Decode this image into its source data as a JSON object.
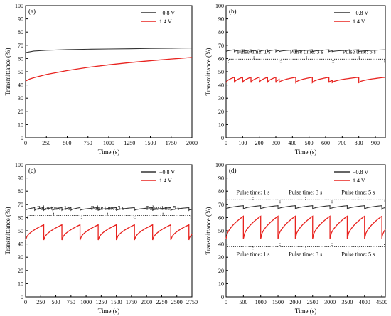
{
  "chart_data": [
    {
      "panel_label": "(a)",
      "type": "line",
      "xlabel": "Time (s)",
      "ylabel": "Transmittance (%)",
      "xlim": [
        0,
        2000
      ],
      "ylim": [
        0,
        100
      ],
      "xticks": [
        0,
        250,
        500,
        750,
        1000,
        1250,
        1500,
        1750,
        2000
      ],
      "yticks": [
        0,
        10,
        20,
        30,
        40,
        50,
        60,
        70,
        80,
        90,
        100
      ],
      "legend_position": "top-right",
      "series": [
        {
          "name": "−0.8 V",
          "color": "#333333",
          "x": [
            0,
            100,
            250,
            500,
            750,
            1000,
            1250,
            1500,
            1750,
            2000
          ],
          "y": [
            64.5,
            65.6,
            66.2,
            66.7,
            67.0,
            67.2,
            67.4,
            67.6,
            67.8,
            68.0
          ]
        },
        {
          "name": "1.4 V",
          "color": "#e8231f",
          "x": [
            0,
            50,
            100,
            250,
            500,
            750,
            1000,
            1250,
            1500,
            1750,
            2000
          ],
          "y": [
            43.0,
            44.5,
            45.5,
            47.9,
            50.9,
            53.3,
            55.2,
            56.9,
            58.3,
            59.6,
            60.8
          ]
        }
      ],
      "annotations": []
    },
    {
      "panel_label": "(b)",
      "type": "line",
      "xlabel": "Time (s)",
      "ylabel": "Transmittance (%)",
      "xlim": [
        0,
        960
      ],
      "ylim": [
        0,
        100
      ],
      "xticks": [
        0,
        100,
        200,
        300,
        400,
        500,
        600,
        700,
        800,
        900
      ],
      "yticks": [
        0,
        10,
        20,
        30,
        40,
        50,
        60,
        70,
        80,
        90,
        100
      ],
      "legend_position": "top-right",
      "series": [
        {
          "name": "−0.8 V",
          "color": "#333333",
          "kind": "sawtooth",
          "period_segments": [
            [
              0,
              320,
              50
            ],
            [
              320,
              640,
              100
            ],
            [
              640,
              960,
              160
            ]
          ],
          "low": 65.2,
          "high": 66.6
        },
        {
          "name": "1.4 V",
          "color": "#e8231f",
          "kind": "sawtooth",
          "period_segments": [
            [
              0,
              320,
              50
            ],
            [
              320,
              640,
              100
            ],
            [
              640,
              960,
              160
            ]
          ],
          "low": 41.8,
          "high": 45.8
        }
      ],
      "annotations": [
        {
          "text": "Pulse time: 1 s",
          "x1": 15,
          "x2": 320,
          "y": 59.5
        },
        {
          "text": "Pulse time: 3 s",
          "x1": 330,
          "x2": 640,
          "y": 59.5
        },
        {
          "text": "Pulse time: 5 s",
          "x1": 650,
          "x2": 955,
          "y": 59.5
        }
      ]
    },
    {
      "panel_label": "(c)",
      "type": "line",
      "xlabel": "Time (s)",
      "ylabel": "Transmittance (%)",
      "xlim": [
        0,
        2750
      ],
      "ylim": [
        0,
        100
      ],
      "xticks": [
        0,
        250,
        500,
        750,
        1000,
        1250,
        1500,
        1750,
        2000,
        2250,
        2500,
        2750
      ],
      "yticks": [
        0,
        10,
        20,
        30,
        40,
        50,
        60,
        70,
        80,
        90,
        100
      ],
      "legend_position": "top-right",
      "series": [
        {
          "name": "−0.8 V",
          "color": "#333333",
          "kind": "sawtooth",
          "period_segments": [
            [
              0,
              900,
              150
            ],
            [
              900,
              1800,
              300
            ],
            [
              1800,
              2750,
              300
            ]
          ],
          "low": 65.5,
          "high": 67.5
        },
        {
          "name": "1.4 V",
          "color": "#e8231f",
          "kind": "sawtooth",
          "period_segments": [
            [
              0,
              900,
              300
            ],
            [
              900,
              1800,
              300
            ],
            [
              1800,
              2750,
              300
            ]
          ],
          "low": 43.0,
          "high": 54.5
        }
      ],
      "annotations": [
        {
          "text": "Pulse time: 1 s",
          "x1": 30,
          "x2": 900,
          "y": 61.5
        },
        {
          "text": "Pulse time: 3 s",
          "x1": 920,
          "x2": 1790,
          "y": 61.5
        },
        {
          "text": "Pulse time: 5 s",
          "x1": 1810,
          "x2": 2730,
          "y": 61.5
        }
      ]
    },
    {
      "panel_label": "(d)",
      "type": "line",
      "xlabel": "Time (s)",
      "ylabel": "Transmittance (%)",
      "xlim": [
        0,
        4600
      ],
      "ylim": [
        0,
        100
      ],
      "xticks": [
        0,
        500,
        1000,
        1500,
        2000,
        2500,
        3000,
        3500,
        4000,
        4500
      ],
      "yticks": [
        0,
        10,
        20,
        30,
        40,
        50,
        60,
        70,
        80,
        90,
        100
      ],
      "legend_position": "top-right",
      "series": [
        {
          "name": "−0.8 V",
          "color": "#333333",
          "kind": "sawtooth",
          "period_segments": [
            [
              0,
              4600,
              500
            ]
          ],
          "low": 66.5,
          "high": 69.0
        },
        {
          "name": "1.4 V",
          "color": "#e8231f",
          "kind": "sawtooth",
          "period_segments": [
            [
              0,
              4600,
              500
            ]
          ],
          "low": 44.0,
          "high": 61.0
        }
      ],
      "annotations": [
        {
          "text": "Pulse time: 1 s",
          "x1": 30,
          "x2": 1530,
          "y": 73.5
        },
        {
          "text": "Pulse time: 3 s",
          "x1": 1560,
          "x2": 3030,
          "y": 73.5
        },
        {
          "text": "Pulse time: 5 s",
          "x1": 3060,
          "x2": 4570,
          "y": 73.5
        },
        {
          "text": "Pulse time: 1 s",
          "x1": 30,
          "x2": 1530,
          "y": 38.0,
          "below": true
        },
        {
          "text": "Pulse time: 3 s",
          "x1": 1560,
          "x2": 3030,
          "y": 38.0,
          "below": true
        },
        {
          "text": "Pulse time: 5 s",
          "x1": 3060,
          "x2": 4570,
          "y": 38.0,
          "below": true
        }
      ]
    }
  ]
}
